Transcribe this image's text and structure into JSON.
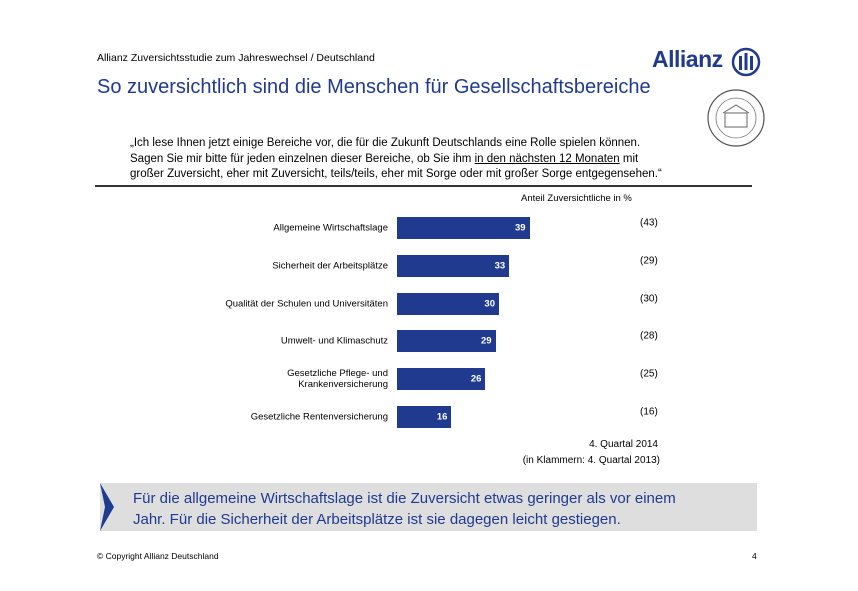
{
  "header": {
    "study": "Allianz Zuversichtsstudie zum Jahreswechsel / Deutschland",
    "brand": "Allianz",
    "title": "So zuversichtlich sind die Menschen für Gesellschaftsbereiche"
  },
  "quote": [
    "„Ich lese Ihnen jetzt einige Bereiche vor, die für die Zukunft Deutschlands eine Rolle spielen können.",
    "Sagen Sie mir bitte für jeden einzelnen dieser Bereiche, ob Sie ihm ",
    "in den nächsten 12 Monaten",
    " mit",
    "großer Zuversicht, eher mit Zuversicht, teils/teils, eher mit Sorge oder mit großer Sorge entgegensehen.“"
  ],
  "chart_data": {
    "type": "bar",
    "orientation": "horizontal",
    "subtitle": "Anteil Zuversichtliche in %",
    "categories": [
      "Allgemeine Wirtschaftslage",
      "Sicherheit der Arbeitsplätze",
      "Qualität der Schulen und Universitäten",
      "Umwelt- und Klimaschutz",
      "Gesetzliche Pflege- und Krankenversicherung",
      "Gesetzliche Rentenversicherung"
    ],
    "series": [
      {
        "name": "4. Quartal 2014",
        "color": "#1f3a8f",
        "values": [
          39,
          33,
          30,
          29,
          26,
          16
        ]
      },
      {
        "name": "(in Klammern: 4. Quartal 2013)",
        "values": [
          43,
          29,
          30,
          28,
          25,
          16
        ],
        "value_labels": [
          "(43)",
          "(29)",
          "(30)",
          "(28)",
          "(25)",
          "(16)"
        ]
      }
    ],
    "xlim": [
      0,
      100
    ]
  },
  "summary": [
    "Für die allgemeine Wirtschaftslage ist die Zuversicht etwas geringer als vor einem",
    "Jahr. Für die Sicherheit der Arbeitsplätze ist sie dagegen leicht gestiegen."
  ],
  "footer": {
    "copyright": "© Copyright Allianz Deutschland",
    "page": "4"
  }
}
